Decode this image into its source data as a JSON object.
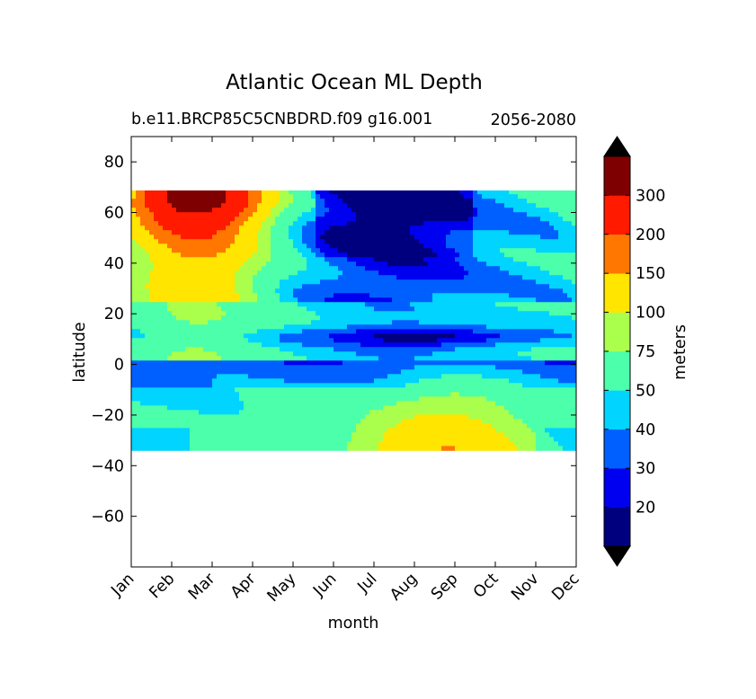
{
  "chart_data": {
    "type": "contour",
    "title": "Atlantic Ocean ML Depth",
    "subtitle_left": "b.e11.BRCP85C5CNBDRD.f09 g16.001",
    "subtitle_right": "2056-2080",
    "xlabel": "month",
    "ylabel": "latitude",
    "x_ticks": [
      "Jan",
      "Feb",
      "Mar",
      "Apr",
      "May",
      "Jun",
      "Jul",
      "Aug",
      "Sep",
      "Oct",
      "Nov",
      "Dec"
    ],
    "xlim": [
      0,
      11
    ],
    "ylim": [
      -80,
      90
    ],
    "y_ticks": [
      80,
      60,
      40,
      20,
      0,
      -20,
      -40,
      -60
    ],
    "y_tick_labels": [
      "80",
      "60",
      "40",
      "20",
      "0",
      "−20",
      "−40",
      "−60"
    ],
    "data_lat_range": [
      -34,
      69
    ],
    "colorbar": {
      "label": "meters",
      "extend": "both",
      "levels": [
        10,
        20,
        30,
        40,
        50,
        75,
        100,
        150,
        200,
        300,
        400
      ],
      "tick_values": [
        20,
        30,
        40,
        50,
        75,
        100,
        150,
        200,
        300
      ],
      "tick_labels": [
        "20",
        "30",
        "40",
        "50",
        "75",
        "100",
        "150",
        "200",
        "300"
      ],
      "colors": [
        "#00007f",
        "#0000f0",
        "#0060ff",
        "#00d4ff",
        "#4cffaa",
        "#aaff4c",
        "#ffe500",
        "#ff7700",
        "#ff1a00",
        "#7f0000"
      ],
      "under_color": "#000000",
      "over_color": "#000000"
    },
    "regions": [
      {
        "name": "southern-subtropics",
        "level_index": 4,
        "description_months": "Jan-Dec",
        "lat": [
          -34,
          5
        ]
      },
      {
        "name": "southern-winter-max",
        "level_index": 5,
        "months": [
          5,
          10
        ],
        "lat": [
          -34,
          -12
        ]
      },
      {
        "name": "southern-winter-core",
        "level_index": 6,
        "months": [
          7,
          9
        ],
        "lat": [
          -34,
          -20
        ]
      },
      {
        "name": "equatorial-shallow",
        "level_index": 3,
        "months": [
          0,
          11
        ],
        "lat": [
          -8,
          5
        ]
      },
      {
        "name": "equatorial-shallow-core",
        "level_index": 1,
        "months": [
          6,
          9
        ],
        "lat": [
          8,
          13
        ]
      },
      {
        "name": "north-summer-shallow",
        "level_index": 0,
        "months": [
          5,
          7
        ],
        "lat": [
          43,
          69
        ]
      },
      {
        "name": "north-winter-deep-core",
        "level_index": 9,
        "months": [
          1,
          2
        ],
        "lat": [
          61,
          64
        ]
      },
      {
        "name": "north-winter-deep",
        "level_index": 8,
        "months": [
          0,
          3
        ],
        "lat": [
          58,
          67
        ]
      }
    ]
  }
}
